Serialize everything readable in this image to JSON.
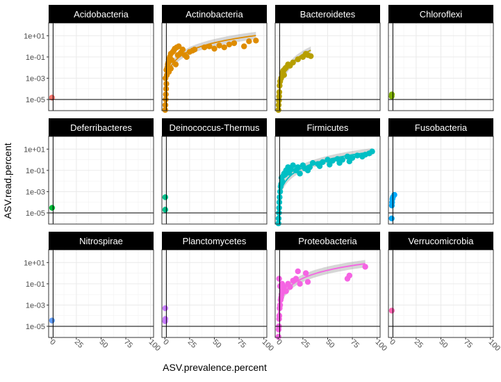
{
  "chart_data": {
    "type": "scatter",
    "layout": "facet_wrap 3x4",
    "xlabel": "ASV.prevalence.percent",
    "ylabel": "ASV.read.percent",
    "x_ticks": [
      "0",
      "25",
      "50",
      "75",
      "100"
    ],
    "y_ticks": [
      "1e+01",
      "1e-01",
      "1e-03",
      "1e-05"
    ],
    "y_scale": "log10",
    "xlim": [
      0,
      100
    ],
    "ylim_log10": [
      -6,
      2
    ],
    "grid": true,
    "legend": "none",
    "reference_lines": {
      "vline_x": 1.5,
      "hline_y": 1e-05
    },
    "panels": [
      {
        "name": "Acidobacteria",
        "color": "#F8766D",
        "points": [
          [
            0.4,
            1.5e-05
          ]
        ]
      },
      {
        "name": "Actinobacteria",
        "color": "#DE8C00",
        "points": [
          [
            0.3,
            1e-06
          ],
          [
            0.5,
            3e-06
          ],
          [
            0.8,
            1e-05
          ],
          [
            1,
            3e-05
          ],
          [
            1.2,
            0.0001
          ],
          [
            1.5,
            0.0003
          ],
          [
            0.6,
            0.001
          ],
          [
            2,
            0.002
          ],
          [
            1.5,
            0.006
          ],
          [
            2.5,
            0.01
          ],
          [
            3,
            0.02
          ],
          [
            3.5,
            0.03
          ],
          [
            4,
            0.06
          ],
          [
            5,
            0.1
          ],
          [
            6,
            0.2
          ],
          [
            8,
            0.3
          ],
          [
            9,
            0.4
          ],
          [
            10,
            0.6
          ],
          [
            12,
            0.8
          ],
          [
            14,
            1.0
          ],
          [
            18,
            0.5
          ],
          [
            20,
            0.15
          ],
          [
            22,
            0.1
          ],
          [
            25,
            0.3
          ],
          [
            28,
            0.4
          ],
          [
            30,
            0.5
          ],
          [
            40,
            0.8
          ],
          [
            45,
            1.0
          ],
          [
            50,
            0.6
          ],
          [
            55,
            1.2
          ],
          [
            60,
            0.8
          ],
          [
            65,
            1.5
          ],
          [
            70,
            2.0
          ],
          [
            80,
            1.0
          ],
          [
            85,
            3.0
          ],
          [
            92,
            3.5
          ],
          [
            7,
            0.05
          ],
          [
            11,
            0.02
          ],
          [
            13,
            0.15
          ],
          [
            16,
            0.25
          ],
          [
            6,
            0.008
          ],
          [
            4,
            0.004
          ]
        ],
        "fit": true
      },
      {
        "name": "Bacteroidetes",
        "color": "#B79F00",
        "points": [
          [
            0.3,
            1e-06
          ],
          [
            0.5,
            3e-06
          ],
          [
            0.8,
            8e-06
          ],
          [
            1,
            2e-05
          ],
          [
            1.2,
            5e-05
          ],
          [
            1.5,
            0.0002
          ],
          [
            2,
            0.0005
          ],
          [
            3,
            0.001
          ],
          [
            4,
            0.003
          ],
          [
            5,
            0.005
          ],
          [
            6,
            0.002
          ],
          [
            7,
            0.008
          ],
          [
            8,
            0.01
          ],
          [
            10,
            0.02
          ],
          [
            12,
            0.015
          ],
          [
            15,
            0.03
          ],
          [
            20,
            0.06
          ],
          [
            25,
            0.1
          ],
          [
            28,
            0.2
          ],
          [
            30,
            0.15
          ],
          [
            33,
            0.12
          ]
        ],
        "fit": true
      },
      {
        "name": "Chloroflexi",
        "color": "#7CAE00",
        "points": [
          [
            0.3,
            2e-05
          ],
          [
            0.5,
            3e-05
          ]
        ]
      },
      {
        "name": "Deferribacteres",
        "color": "#00BA38",
        "points": [
          [
            0.5,
            3e-05
          ]
        ]
      },
      {
        "name": "Deinococcus-Thermus",
        "color": "#00C08B",
        "points": [
          [
            0.4,
            0.0003
          ],
          [
            0.4,
            2e-05
          ]
        ]
      },
      {
        "name": "Firmicutes",
        "color": "#00BFC4",
        "points": [
          [
            0.3,
            1e-06
          ],
          [
            0.5,
            3e-06
          ],
          [
            0.8,
            1e-05
          ],
          [
            1,
            3e-05
          ],
          [
            1.2,
            0.0001
          ],
          [
            1.5,
            0.0003
          ],
          [
            2,
            0.001
          ],
          [
            2.5,
            0.003
          ],
          [
            3,
            0.005
          ],
          [
            4,
            0.01
          ],
          [
            5,
            0.03
          ],
          [
            6,
            0.05
          ],
          [
            8,
            0.1
          ],
          [
            10,
            0.2
          ],
          [
            12,
            0.15
          ],
          [
            15,
            0.3
          ],
          [
            18,
            0.1
          ],
          [
            20,
            0.2
          ],
          [
            25,
            0.3
          ],
          [
            30,
            0.1
          ],
          [
            35,
            0.5
          ],
          [
            40,
            0.4
          ],
          [
            45,
            0.6
          ],
          [
            50,
            1.0
          ],
          [
            55,
            0.8
          ],
          [
            60,
            1.2
          ],
          [
            65,
            1.0
          ],
          [
            70,
            2.0
          ],
          [
            75,
            1.5
          ],
          [
            80,
            2.5
          ],
          [
            85,
            2.0
          ],
          [
            88,
            3.0
          ],
          [
            92,
            4.0
          ],
          [
            95,
            6.0
          ],
          [
            3.5,
            0.02
          ],
          [
            7,
            0.04
          ],
          [
            9,
            0.08
          ],
          [
            11,
            0.06
          ],
          [
            13,
            0.12
          ],
          [
            22,
            0.05
          ],
          [
            27,
            0.15
          ],
          [
            32,
            0.2
          ],
          [
            42,
            0.25
          ],
          [
            52,
            0.35
          ],
          [
            62,
            0.5
          ],
          [
            72,
            0.7
          ]
        ],
        "fit": true
      },
      {
        "name": "Fusobacteria",
        "color": "#00A9FF",
        "points": [
          [
            0.3,
            3e-06
          ],
          [
            0.5,
            5e-05
          ],
          [
            0.7,
            0.0001
          ],
          [
            1,
            0.0002
          ],
          [
            1.5,
            0.0003
          ],
          [
            3,
            0.0005
          ]
        ]
      },
      {
        "name": "Nitrospirae",
        "color": "#619CFF",
        "points": [
          [
            0.4,
            3.5e-05
          ]
        ]
      },
      {
        "name": "Planctomycetes",
        "color": "#C77CFF",
        "points": [
          [
            0.4,
            0.0005
          ],
          [
            0.5,
            5e-05
          ],
          [
            0.3,
            3e-05
          ]
        ]
      },
      {
        "name": "Proteobacteria",
        "color": "#F564E3",
        "points": [
          [
            0.3,
            1e-06
          ],
          [
            0.5,
            5e-06
          ],
          [
            0.8,
            1e-05
          ],
          [
            1,
            5e-05
          ],
          [
            1.2,
            0.0001
          ],
          [
            1.5,
            0.0005
          ],
          [
            2,
            0.001
          ],
          [
            2.5,
            0.003
          ],
          [
            3,
            0.005
          ],
          [
            3.5,
            0.01
          ],
          [
            4,
            0.02
          ],
          [
            5,
            0.03
          ],
          [
            6,
            0.05
          ],
          [
            8,
            0.02
          ],
          [
            10,
            0.1
          ],
          [
            12,
            0.05
          ],
          [
            15,
            0.2
          ],
          [
            18,
            0.3
          ],
          [
            20,
            1.5
          ],
          [
            22,
            0.1
          ],
          [
            28,
            1.0
          ],
          [
            30,
            0.15
          ],
          [
            70,
            0.3
          ],
          [
            72,
            0.6
          ],
          [
            88,
            4.0
          ],
          [
            2,
            0.06
          ],
          [
            1,
            0.3
          ],
          [
            4,
            0.1
          ]
        ],
        "fit": true
      },
      {
        "name": "Verrucomicrobia",
        "color": "#FF64B0",
        "points": [
          [
            0.4,
            0.0003
          ]
        ]
      }
    ]
  }
}
